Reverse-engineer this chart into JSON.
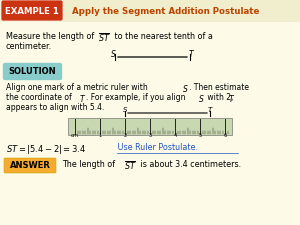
{
  "bg_color": "#faf8e8",
  "header_bg": "#cc3311",
  "header_text": "EXAMPLE 1",
  "header_title": "Apply the Segment Addition Postulate",
  "header_title_color": "#bb4400",
  "solution_bg": "#88cccc",
  "solution_text": "SOLUTION",
  "postulate_color": "#2255bb",
  "answer_bg": "#f5aa30",
  "answer_text": "ANSWER",
  "ruler_color": "#c8d8b0",
  "fig_w": 3.0,
  "fig_h": 2.25,
  "dpi": 100
}
